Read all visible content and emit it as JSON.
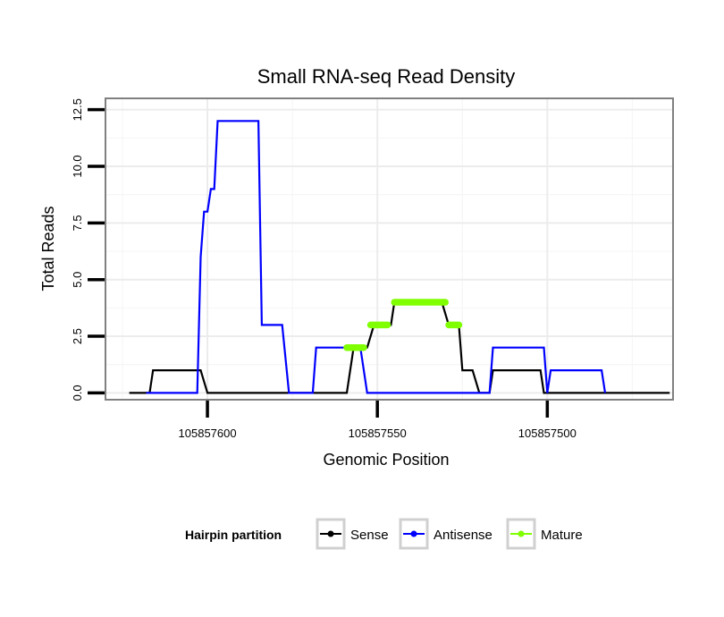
{
  "chart_data": {
    "type": "line",
    "title": "Small RNA-seq Read Density",
    "xlabel": "Genomic Position",
    "ylabel": "Total Reads",
    "xlim": [
      105857630,
      105857463
    ],
    "ylim": [
      -0.3,
      13.0
    ],
    "x_reversed": true,
    "grid": true,
    "x_ticks": [
      {
        "value": 105857600,
        "label": "105857600"
      },
      {
        "value": 105857550,
        "label": "105857550"
      },
      {
        "value": 105857500,
        "label": "105857500"
      }
    ],
    "y_ticks": [
      {
        "value": 0,
        "label": "0.0"
      },
      {
        "value": 2.5,
        "label": "2.5"
      },
      {
        "value": 5,
        "label": "5.0"
      },
      {
        "value": 7.5,
        "label": "7.5"
      },
      {
        "value": 10,
        "label": "10.0"
      },
      {
        "value": 12.5,
        "label": "12.5"
      }
    ],
    "legend": {
      "title": "Hairpin partition",
      "position": "bottom",
      "entries": [
        {
          "name": "Sense",
          "color": "#000000"
        },
        {
          "name": "Antisense",
          "color": "#0000ff"
        },
        {
          "name": "Mature",
          "color": "#7fff00"
        }
      ]
    },
    "series": [
      {
        "name": "Sense",
        "color": "#000000",
        "kind": "line",
        "points": [
          [
            105857623,
            0
          ],
          [
            105857617,
            0
          ],
          [
            105857616,
            1
          ],
          [
            105857602,
            1
          ],
          [
            105857600,
            0
          ],
          [
            105857559,
            0
          ],
          [
            105857557,
            2
          ],
          [
            105857553,
            2
          ],
          [
            105857551,
            3
          ],
          [
            105857546,
            3
          ],
          [
            105857545,
            4
          ],
          [
            105857531,
            4
          ],
          [
            105857529,
            3
          ],
          [
            105857526,
            3
          ],
          [
            105857525,
            1
          ],
          [
            105857522,
            1
          ],
          [
            105857520,
            0
          ],
          [
            105857517,
            0
          ],
          [
            105857516,
            1
          ],
          [
            105857502,
            1
          ],
          [
            105857501,
            0
          ],
          [
            105857464,
            0
          ]
        ]
      },
      {
        "name": "Antisense",
        "color": "#0000ff",
        "kind": "line",
        "points": [
          [
            105857618,
            0
          ],
          [
            105857603,
            0
          ],
          [
            105857602,
            6
          ],
          [
            105857601,
            8
          ],
          [
            105857600,
            8
          ],
          [
            105857599,
            9
          ],
          [
            105857598,
            9
          ],
          [
            105857597,
            12
          ],
          [
            105857585,
            12
          ],
          [
            105857584,
            3
          ],
          [
            105857578,
            3
          ],
          [
            105857576,
            0
          ],
          [
            105857569,
            0
          ],
          [
            105857568,
            2
          ],
          [
            105857555,
            2
          ],
          [
            105857553,
            0
          ],
          [
            105857517,
            0
          ],
          [
            105857516,
            2
          ],
          [
            105857501,
            2
          ],
          [
            105857500,
            0
          ],
          [
            105857499,
            1
          ],
          [
            105857484,
            1
          ],
          [
            105857483,
            0
          ]
        ]
      },
      {
        "name": "Mature",
        "color": "#7fff00",
        "kind": "segments",
        "segments": [
          {
            "x": [
              105857559,
              105857554
            ],
            "y": 2
          },
          {
            "x": [
              105857552,
              105857547
            ],
            "y": 3
          },
          {
            "x": [
              105857545,
              105857530
            ],
            "y": 4
          },
          {
            "x": [
              105857529,
              105857526
            ],
            "y": 3
          }
        ]
      }
    ]
  }
}
